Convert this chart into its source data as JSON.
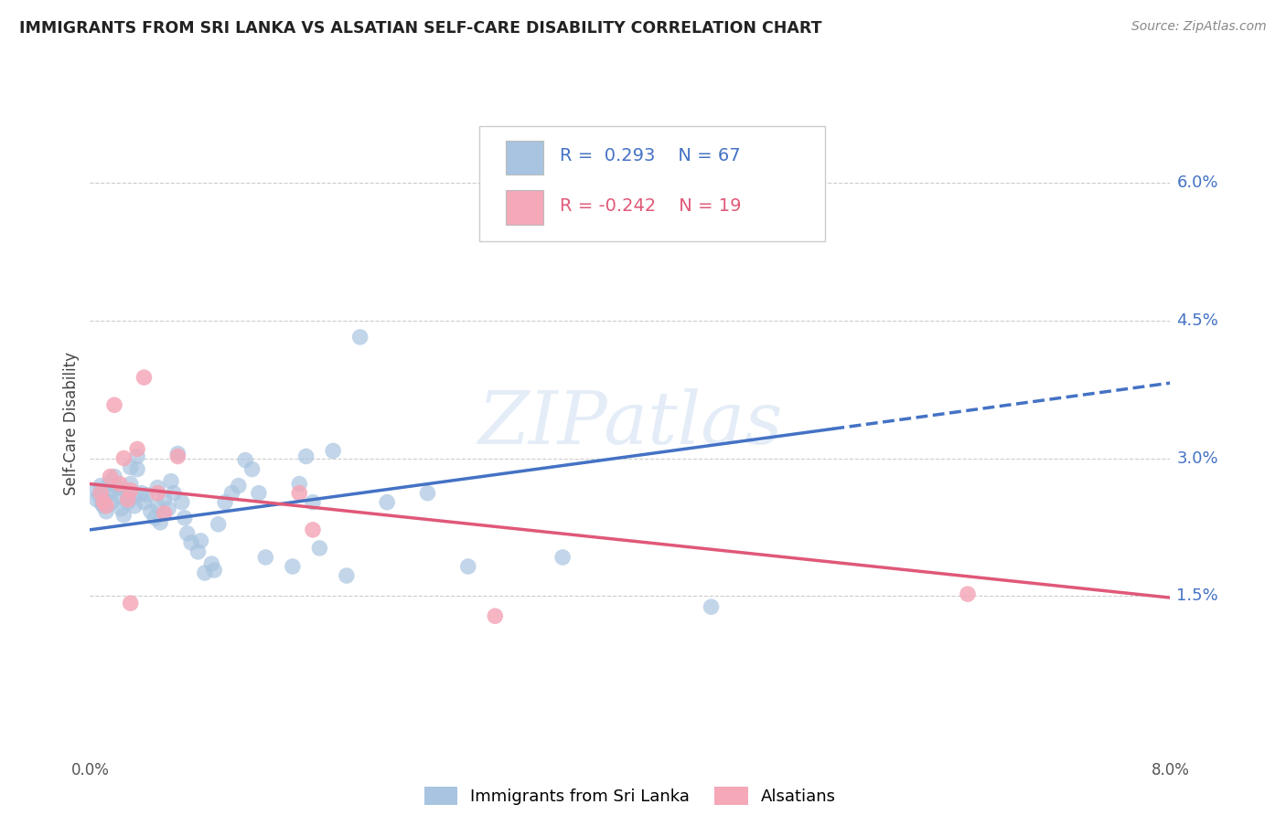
{
  "title": "IMMIGRANTS FROM SRI LANKA VS ALSATIAN SELF-CARE DISABILITY CORRELATION CHART",
  "source": "Source: ZipAtlas.com",
  "ylabel": "Self-Care Disability",
  "ytick_vals": [
    1.5,
    3.0,
    4.5,
    6.0
  ],
  "xlim": [
    0.0,
    8.0
  ],
  "ylim": [
    0.0,
    6.75
  ],
  "watermark": "ZIPatlas",
  "blue_color": "#a8c4e0",
  "pink_color": "#f4a8b8",
  "blue_line_color": "#4472c4",
  "pink_line_color": "#e05878",
  "blue_dots": [
    [
      0.05,
      2.55
    ],
    [
      0.05,
      2.65
    ],
    [
      0.07,
      2.6
    ],
    [
      0.08,
      2.7
    ],
    [
      0.09,
      2.5
    ],
    [
      0.1,
      2.48
    ],
    [
      0.1,
      2.58
    ],
    [
      0.12,
      2.42
    ],
    [
      0.14,
      2.72
    ],
    [
      0.15,
      2.62
    ],
    [
      0.16,
      2.52
    ],
    [
      0.18,
      2.8
    ],
    [
      0.2,
      2.68
    ],
    [
      0.22,
      2.58
    ],
    [
      0.23,
      2.45
    ],
    [
      0.25,
      2.38
    ],
    [
      0.27,
      2.62
    ],
    [
      0.28,
      2.52
    ],
    [
      0.3,
      2.72
    ],
    [
      0.3,
      2.9
    ],
    [
      0.32,
      2.58
    ],
    [
      0.33,
      2.48
    ],
    [
      0.35,
      3.02
    ],
    [
      0.35,
      2.88
    ],
    [
      0.38,
      2.62
    ],
    [
      0.4,
      2.52
    ],
    [
      0.42,
      2.6
    ],
    [
      0.45,
      2.42
    ],
    [
      0.48,
      2.35
    ],
    [
      0.5,
      2.68
    ],
    [
      0.5,
      2.48
    ],
    [
      0.52,
      2.3
    ],
    [
      0.55,
      2.55
    ],
    [
      0.58,
      2.45
    ],
    [
      0.6,
      2.75
    ],
    [
      0.62,
      2.62
    ],
    [
      0.65,
      3.05
    ],
    [
      0.68,
      2.52
    ],
    [
      0.7,
      2.35
    ],
    [
      0.72,
      2.18
    ],
    [
      0.75,
      2.08
    ],
    [
      0.8,
      1.98
    ],
    [
      0.82,
      2.1
    ],
    [
      0.85,
      1.75
    ],
    [
      0.9,
      1.85
    ],
    [
      0.92,
      1.78
    ],
    [
      0.95,
      2.28
    ],
    [
      1.0,
      2.52
    ],
    [
      1.05,
      2.62
    ],
    [
      1.1,
      2.7
    ],
    [
      1.15,
      2.98
    ],
    [
      1.2,
      2.88
    ],
    [
      1.25,
      2.62
    ],
    [
      1.3,
      1.92
    ],
    [
      1.5,
      1.82
    ],
    [
      1.55,
      2.72
    ],
    [
      1.6,
      3.02
    ],
    [
      1.65,
      2.52
    ],
    [
      1.7,
      2.02
    ],
    [
      1.8,
      3.08
    ],
    [
      1.9,
      1.72
    ],
    [
      2.0,
      4.32
    ],
    [
      2.2,
      2.52
    ],
    [
      2.5,
      2.62
    ],
    [
      2.8,
      1.82
    ],
    [
      3.5,
      1.92
    ],
    [
      4.6,
      1.38
    ]
  ],
  "pink_dots": [
    [
      0.08,
      2.62
    ],
    [
      0.1,
      2.52
    ],
    [
      0.12,
      2.48
    ],
    [
      0.15,
      2.8
    ],
    [
      0.18,
      3.58
    ],
    [
      0.22,
      2.72
    ],
    [
      0.25,
      3.0
    ],
    [
      0.28,
      2.55
    ],
    [
      0.3,
      2.65
    ],
    [
      0.35,
      3.1
    ],
    [
      0.4,
      3.88
    ],
    [
      0.5,
      2.62
    ],
    [
      0.55,
      2.4
    ],
    [
      0.65,
      3.02
    ],
    [
      1.55,
      2.62
    ],
    [
      1.65,
      2.22
    ],
    [
      3.0,
      1.28
    ],
    [
      6.5,
      1.52
    ],
    [
      0.3,
      1.42
    ]
  ],
  "blue_trendline_solid": [
    [
      0.0,
      2.22
    ],
    [
      5.5,
      3.32
    ]
  ],
  "blue_trendline_dash": [
    [
      5.5,
      3.32
    ],
    [
      8.0,
      3.82
    ]
  ],
  "pink_trendline": [
    [
      0.0,
      2.72
    ],
    [
      8.0,
      1.48
    ]
  ]
}
